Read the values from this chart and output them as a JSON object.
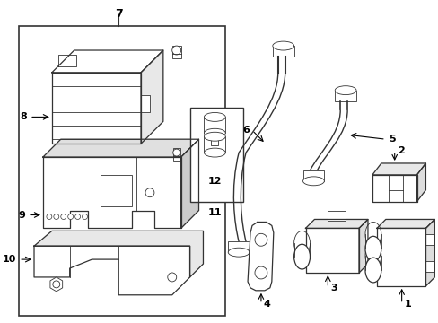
{
  "bg_color": "#ffffff",
  "line_color": "#333333",
  "fig_w": 4.89,
  "fig_h": 3.6,
  "dpi": 100
}
